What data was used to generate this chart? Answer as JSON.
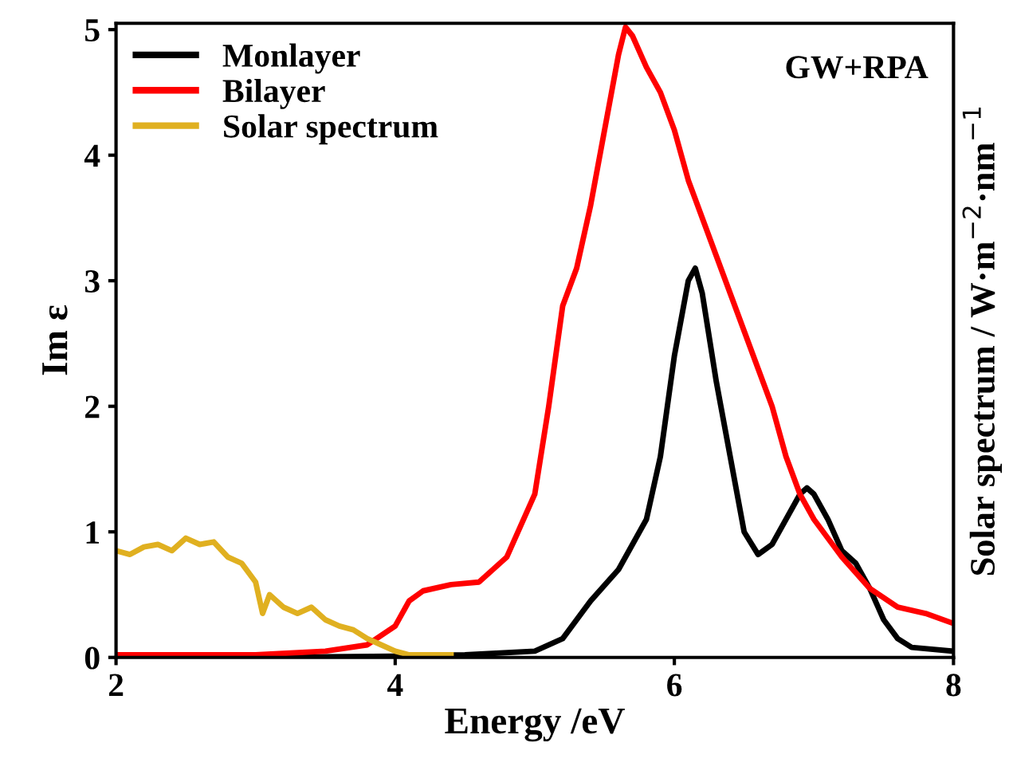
{
  "chart_data": {
    "type": "line",
    "xlabel": "Energy /eV",
    "ylabel": "Im ε",
    "y2label": "Solar spectrum / W·m$^{−2}$·nm$^{−1}$",
    "annotations": [
      "GW+RPA"
    ],
    "xlim": [
      2,
      8
    ],
    "xticks": [
      2,
      4,
      6,
      8
    ],
    "ylim": [
      0,
      5.05
    ],
    "yticks": [
      0,
      1,
      2,
      3,
      4,
      5
    ],
    "grid": false,
    "legend": "top left",
    "tick_labels": "xy",
    "series": [
      {
        "name": "Monlayer",
        "color": "#000000",
        "x": [
          2,
          3,
          4,
          4.5,
          5.0,
          5.2,
          5.4,
          5.6,
          5.8,
          5.9,
          6.0,
          6.1,
          6.15,
          6.2,
          6.3,
          6.4,
          6.5,
          6.6,
          6.7,
          6.8,
          6.9,
          6.95,
          7.0,
          7.1,
          7.2,
          7.3,
          7.4,
          7.5,
          7.6,
          7.7,
          8
        ],
        "values": [
          0,
          0,
          0.01,
          0.02,
          0.05,
          0.15,
          0.45,
          0.7,
          1.1,
          1.6,
          2.4,
          3.0,
          3.1,
          2.9,
          2.2,
          1.6,
          1.0,
          0.82,
          0.9,
          1.1,
          1.3,
          1.35,
          1.3,
          1.1,
          0.85,
          0.75,
          0.55,
          0.3,
          0.15,
          0.08,
          0.05
        ]
      },
      {
        "name": "Bilayer",
        "color": "#ff0000",
        "x": [
          2,
          3,
          3.5,
          3.8,
          4.0,
          4.1,
          4.2,
          4.4,
          4.6,
          4.8,
          5.0,
          5.1,
          5.2,
          5.3,
          5.4,
          5.5,
          5.6,
          5.65,
          5.7,
          5.8,
          5.9,
          6.0,
          6.1,
          6.2,
          6.3,
          6.4,
          6.5,
          6.6,
          6.7,
          6.8,
          6.9,
          7.0,
          7.2,
          7.4,
          7.6,
          7.8,
          8
        ],
        "values": [
          0.02,
          0.02,
          0.05,
          0.1,
          0.25,
          0.45,
          0.53,
          0.58,
          0.6,
          0.8,
          1.3,
          2.0,
          2.8,
          3.1,
          3.6,
          4.2,
          4.8,
          5.02,
          4.95,
          4.7,
          4.5,
          4.2,
          3.8,
          3.5,
          3.2,
          2.9,
          2.6,
          2.3,
          2.0,
          1.6,
          1.3,
          1.1,
          0.8,
          0.55,
          0.4,
          0.35,
          0.27
        ]
      },
      {
        "name": "Solar spectrum",
        "color": "#e0b020",
        "x": [
          2,
          2.1,
          2.2,
          2.3,
          2.4,
          2.5,
          2.6,
          2.7,
          2.8,
          2.9,
          3.0,
          3.05,
          3.1,
          3.2,
          3.3,
          3.4,
          3.5,
          3.6,
          3.7,
          3.8,
          3.9,
          4.0,
          4.1,
          4.4
        ],
        "values": [
          0.85,
          0.82,
          0.88,
          0.9,
          0.85,
          0.95,
          0.9,
          0.92,
          0.8,
          0.75,
          0.6,
          0.35,
          0.5,
          0.4,
          0.35,
          0.4,
          0.3,
          0.25,
          0.22,
          0.15,
          0.1,
          0.05,
          0.02,
          0.02
        ]
      }
    ]
  }
}
